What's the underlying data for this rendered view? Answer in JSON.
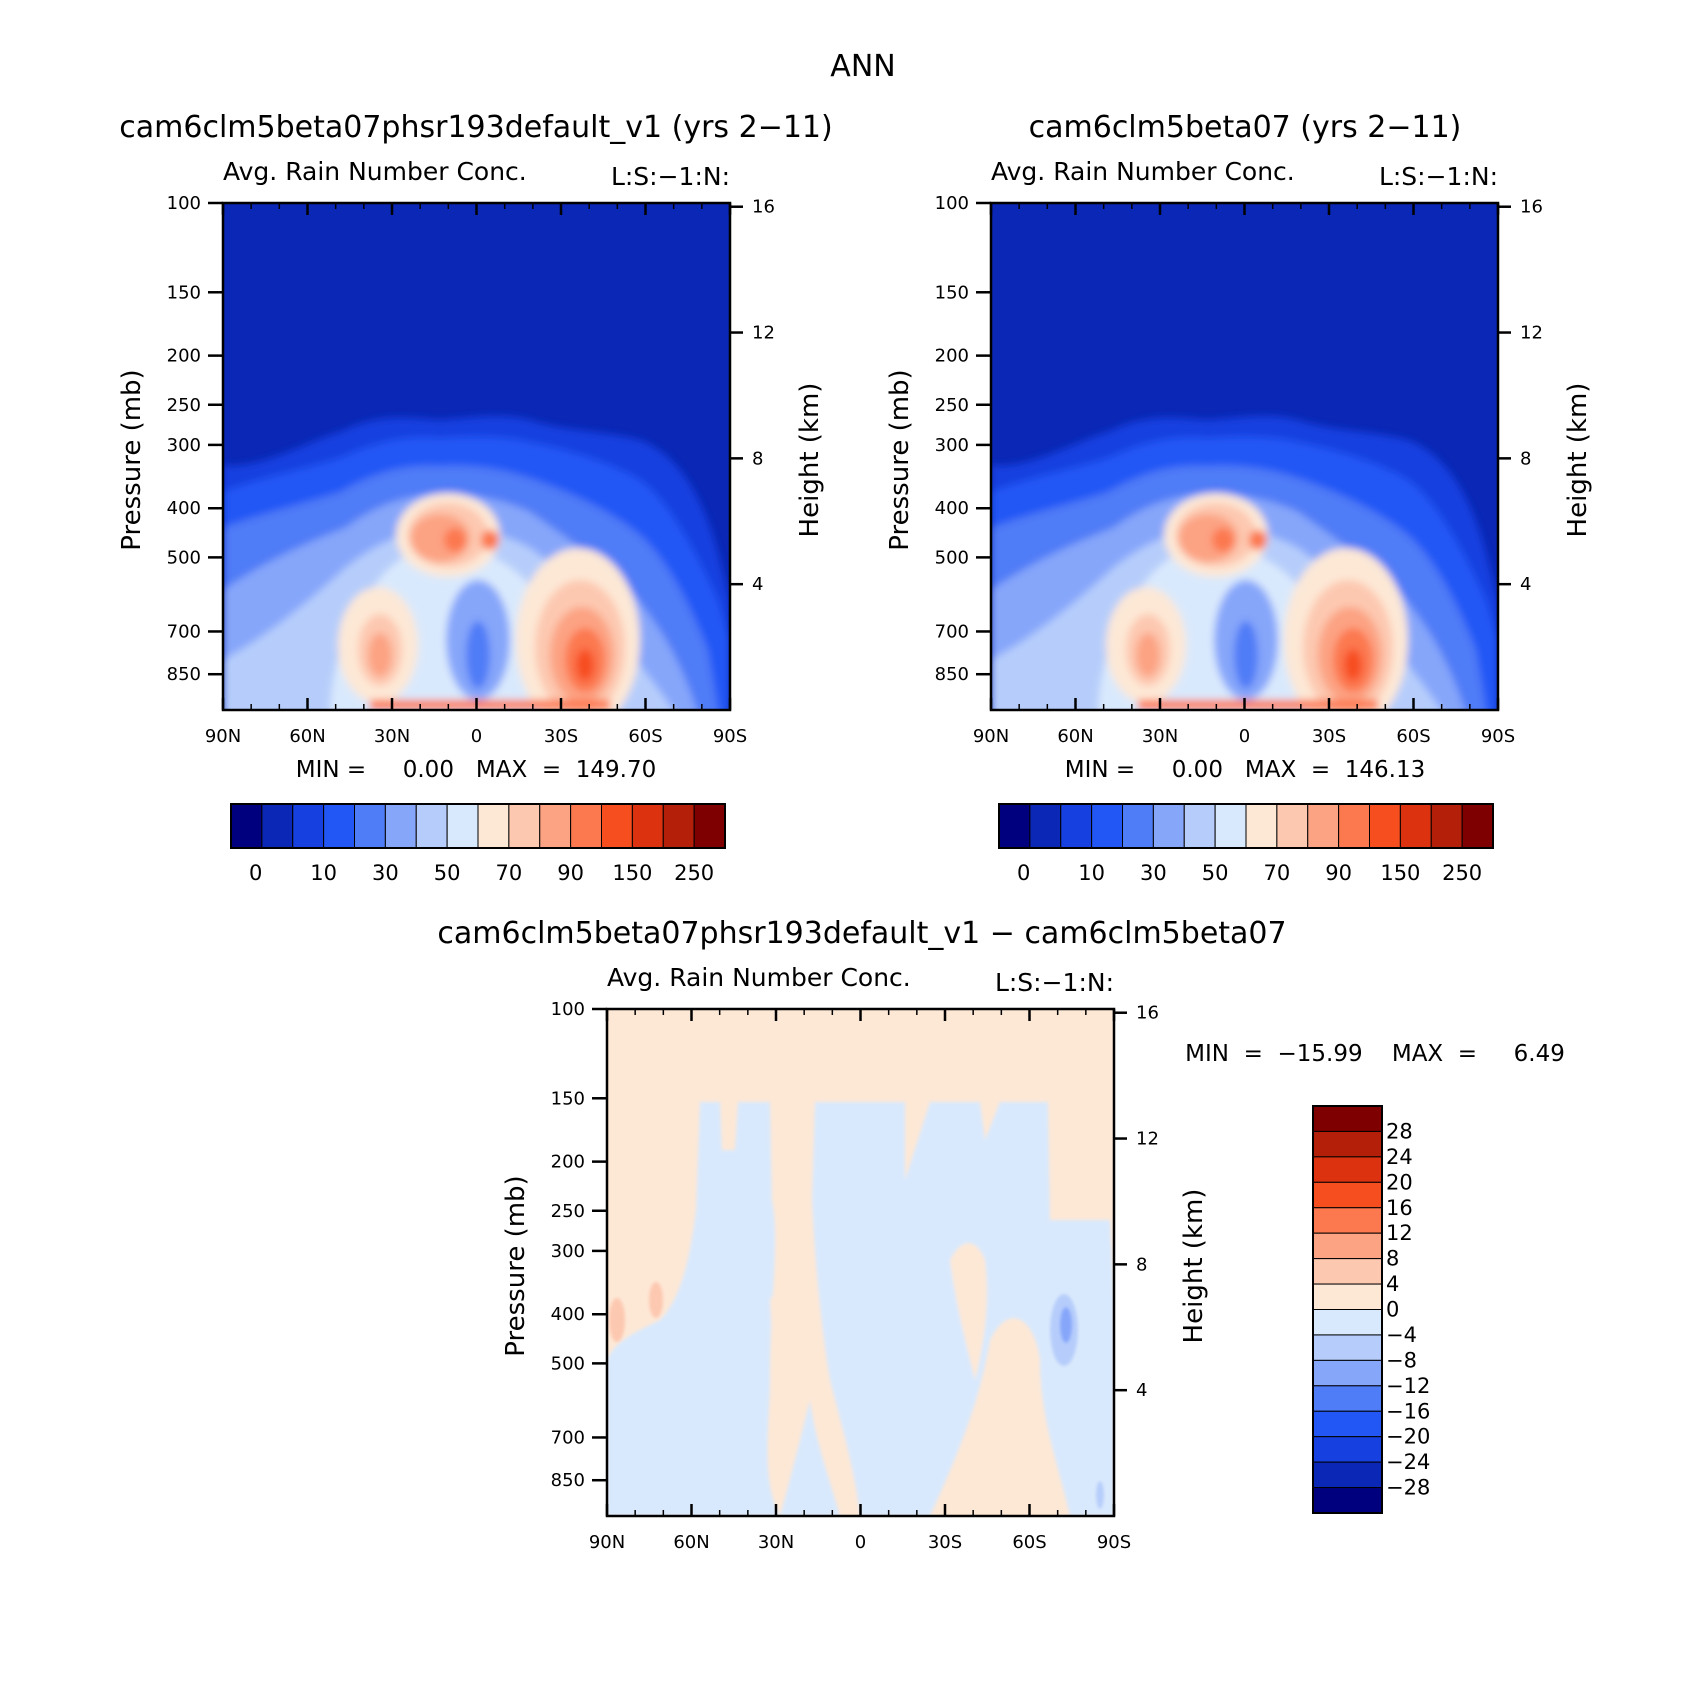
{
  "page_title": "ANN",
  "panel_subtitle": "Avg. Rain Number Conc.",
  "panel_corner": "L:S:−1:N:",
  "y_left_label": "Pressure (mb)",
  "y_right_label": "Height (km)",
  "lat_labels": [
    "90N",
    "60N",
    "30N",
    "0",
    "30S",
    "60S",
    "90S"
  ],
  "pressure_labels": [
    "100",
    "150",
    "200",
    "250",
    "300",
    "400",
    "500",
    "700",
    "850"
  ],
  "height_labels": [
    "16",
    "12",
    "8",
    "4"
  ],
  "panels": [
    {
      "title": "cam6clm5beta07phsr193default_v1 (yrs 2−11)",
      "stats": "MIN =     0.00   MAX  =  149.70"
    },
    {
      "title": "cam6clm5beta07 (yrs 2−11)",
      "stats": "MIN =     0.00   MAX  =  146.13"
    },
    {
      "title": "cam6clm5beta07phsr193default_v1 − cam6clm5beta07",
      "stats": "MIN  =  −15.99    MAX  =     6.49"
    }
  ],
  "colorbar_top": {
    "labels": [
      "0",
      "10",
      "30",
      "50",
      "70",
      "90",
      "150",
      "250"
    ],
    "colors": [
      "#00007f",
      "#0a27b5",
      "#1640e0",
      "#2357f5",
      "#4f7cf7",
      "#86a6fa",
      "#b6cdfb",
      "#d9e9fd",
      "#fde8d6",
      "#fdc8b0",
      "#fca383",
      "#fc784f",
      "#f74e20",
      "#dc3210",
      "#b41f0a",
      "#7f0000"
    ]
  },
  "colorbar_diff": {
    "labels": [
      "28",
      "24",
      "20",
      "16",
      "12",
      "8",
      "4",
      "0",
      "−4",
      "−8",
      "−12",
      "−16",
      "−20",
      "−24",
      "−28"
    ],
    "colors": [
      "#7f0000",
      "#b41f0a",
      "#dc3210",
      "#f74e20",
      "#fc784f",
      "#fca383",
      "#fdc8b0",
      "#fde8d6",
      "#d9e9fd",
      "#b6cdfb",
      "#86a6fa",
      "#4f7cf7",
      "#2357f5",
      "#1640e0",
      "#0a27b5",
      "#00007f"
    ]
  },
  "chart_data": [
    {
      "type": "heatmap",
      "title": "cam6clm5beta07phsr193default_v1 (yrs 2−11)",
      "subtitle": "Avg. Rain Number Conc.",
      "xlabel": "",
      "ylabel": "Pressure (mb)",
      "y2label": "Height (km)",
      "x_ticks": [
        "90N",
        "60N",
        "30N",
        "0",
        "30S",
        "60S",
        "90S"
      ],
      "y_ticks": [
        100,
        150,
        200,
        250,
        300,
        400,
        500,
        700,
        850
      ],
      "y2_ticks": [
        16,
        12,
        8,
        4
      ],
      "levels": [
        0,
        10,
        30,
        50,
        70,
        90,
        150,
        250
      ],
      "min": 0.0,
      "max": 149.7,
      "features": [
        {
          "lat": -35,
          "p": 700,
          "value": 120
        },
        {
          "lat": 8,
          "p": 420,
          "value": 95
        },
        {
          "lat": -3,
          "p": 420,
          "value": 80
        },
        {
          "lat": 38,
          "p": 700,
          "value": 65
        }
      ]
    },
    {
      "type": "heatmap",
      "title": "cam6clm5beta07 (yrs 2−11)",
      "subtitle": "Avg. Rain Number Conc.",
      "xlabel": "",
      "ylabel": "Pressure (mb)",
      "y2label": "Height (km)",
      "x_ticks": [
        "90N",
        "60N",
        "30N",
        "0",
        "30S",
        "60S",
        "90S"
      ],
      "y_ticks": [
        100,
        150,
        200,
        250,
        300,
        400,
        500,
        700,
        850
      ],
      "y2_ticks": [
        16,
        12,
        8,
        4
      ],
      "levels": [
        0,
        10,
        30,
        50,
        70,
        90,
        150,
        250
      ],
      "min": 0.0,
      "max": 146.13,
      "features": [
        {
          "lat": -35,
          "p": 700,
          "value": 118
        },
        {
          "lat": 8,
          "p": 420,
          "value": 92
        },
        {
          "lat": -3,
          "p": 420,
          "value": 78
        },
        {
          "lat": 38,
          "p": 700,
          "value": 63
        }
      ]
    },
    {
      "type": "heatmap",
      "title": "cam6clm5beta07phsr193default_v1 − cam6clm5beta07",
      "subtitle": "Avg. Rain Number Conc.",
      "xlabel": "",
      "ylabel": "Pressure (mb)",
      "y2label": "Height (km)",
      "x_ticks": [
        "90N",
        "60N",
        "30N",
        "0",
        "30S",
        "60S",
        "90S"
      ],
      "y_ticks": [
        100,
        150,
        200,
        250,
        300,
        400,
        500,
        700,
        850
      ],
      "y2_ticks": [
        16,
        12,
        8,
        4
      ],
      "levels": [
        -28,
        -24,
        -20,
        -16,
        -12,
        -8,
        -4,
        0,
        4,
        8,
        12,
        16,
        20,
        24,
        28
      ],
      "min": -15.99,
      "max": 6.49
    }
  ]
}
